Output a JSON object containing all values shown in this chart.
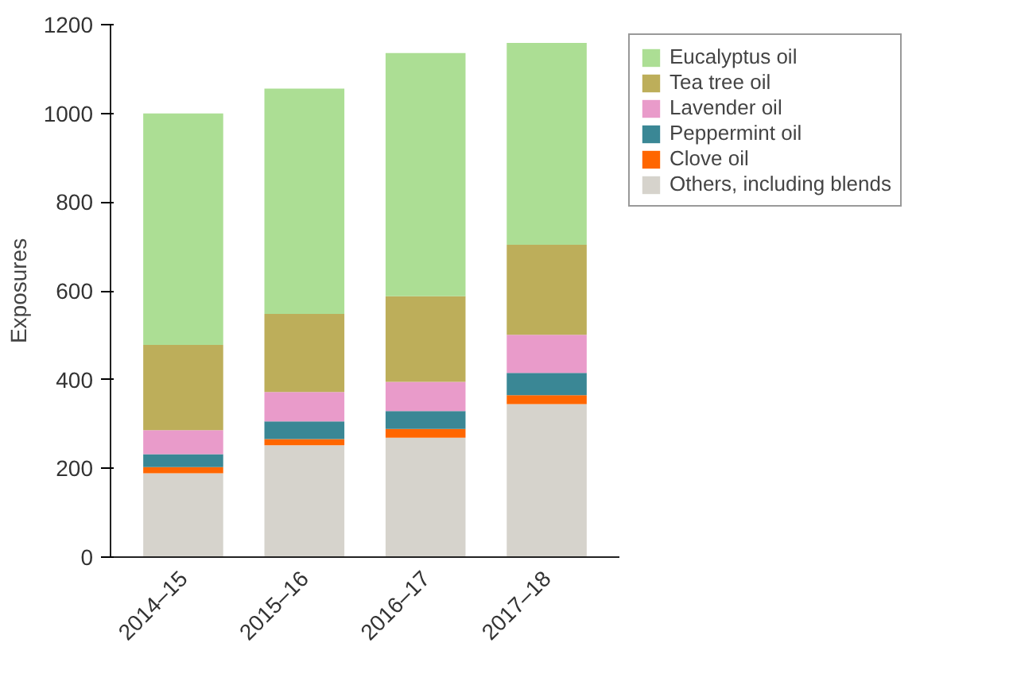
{
  "chart_data": {
    "type": "bar",
    "stacked": true,
    "ylabel": "Exposures",
    "categories": [
      "2014–15",
      "2015–16",
      "2016–17",
      "2017–18"
    ],
    "series": [
      {
        "name": "Others, including blends",
        "color": "#d6d3cc",
        "values": [
          189,
          252,
          269,
          345
        ]
      },
      {
        "name": "Clove oil",
        "color": "#ff6600",
        "values": [
          14,
          14,
          20,
          20
        ]
      },
      {
        "name": "Peppermint oil",
        "color": "#3a8795",
        "values": [
          29,
          40,
          40,
          50
        ]
      },
      {
        "name": "Lavender oil",
        "color": "#e99bca",
        "values": [
          54,
          66,
          66,
          86
        ]
      },
      {
        "name": "Tea tree oil",
        "color": "#bdae5a",
        "values": [
          192,
          176,
          193,
          203
        ]
      },
      {
        "name": "Eucalyptus oil",
        "color": "#acde94",
        "values": [
          522,
          508,
          548,
          455
        ]
      }
    ],
    "ylim": [
      0,
      1200
    ],
    "yticks": [
      0,
      200,
      400,
      600,
      800,
      1000,
      1200
    ],
    "grid": false,
    "legend": "top right"
  }
}
